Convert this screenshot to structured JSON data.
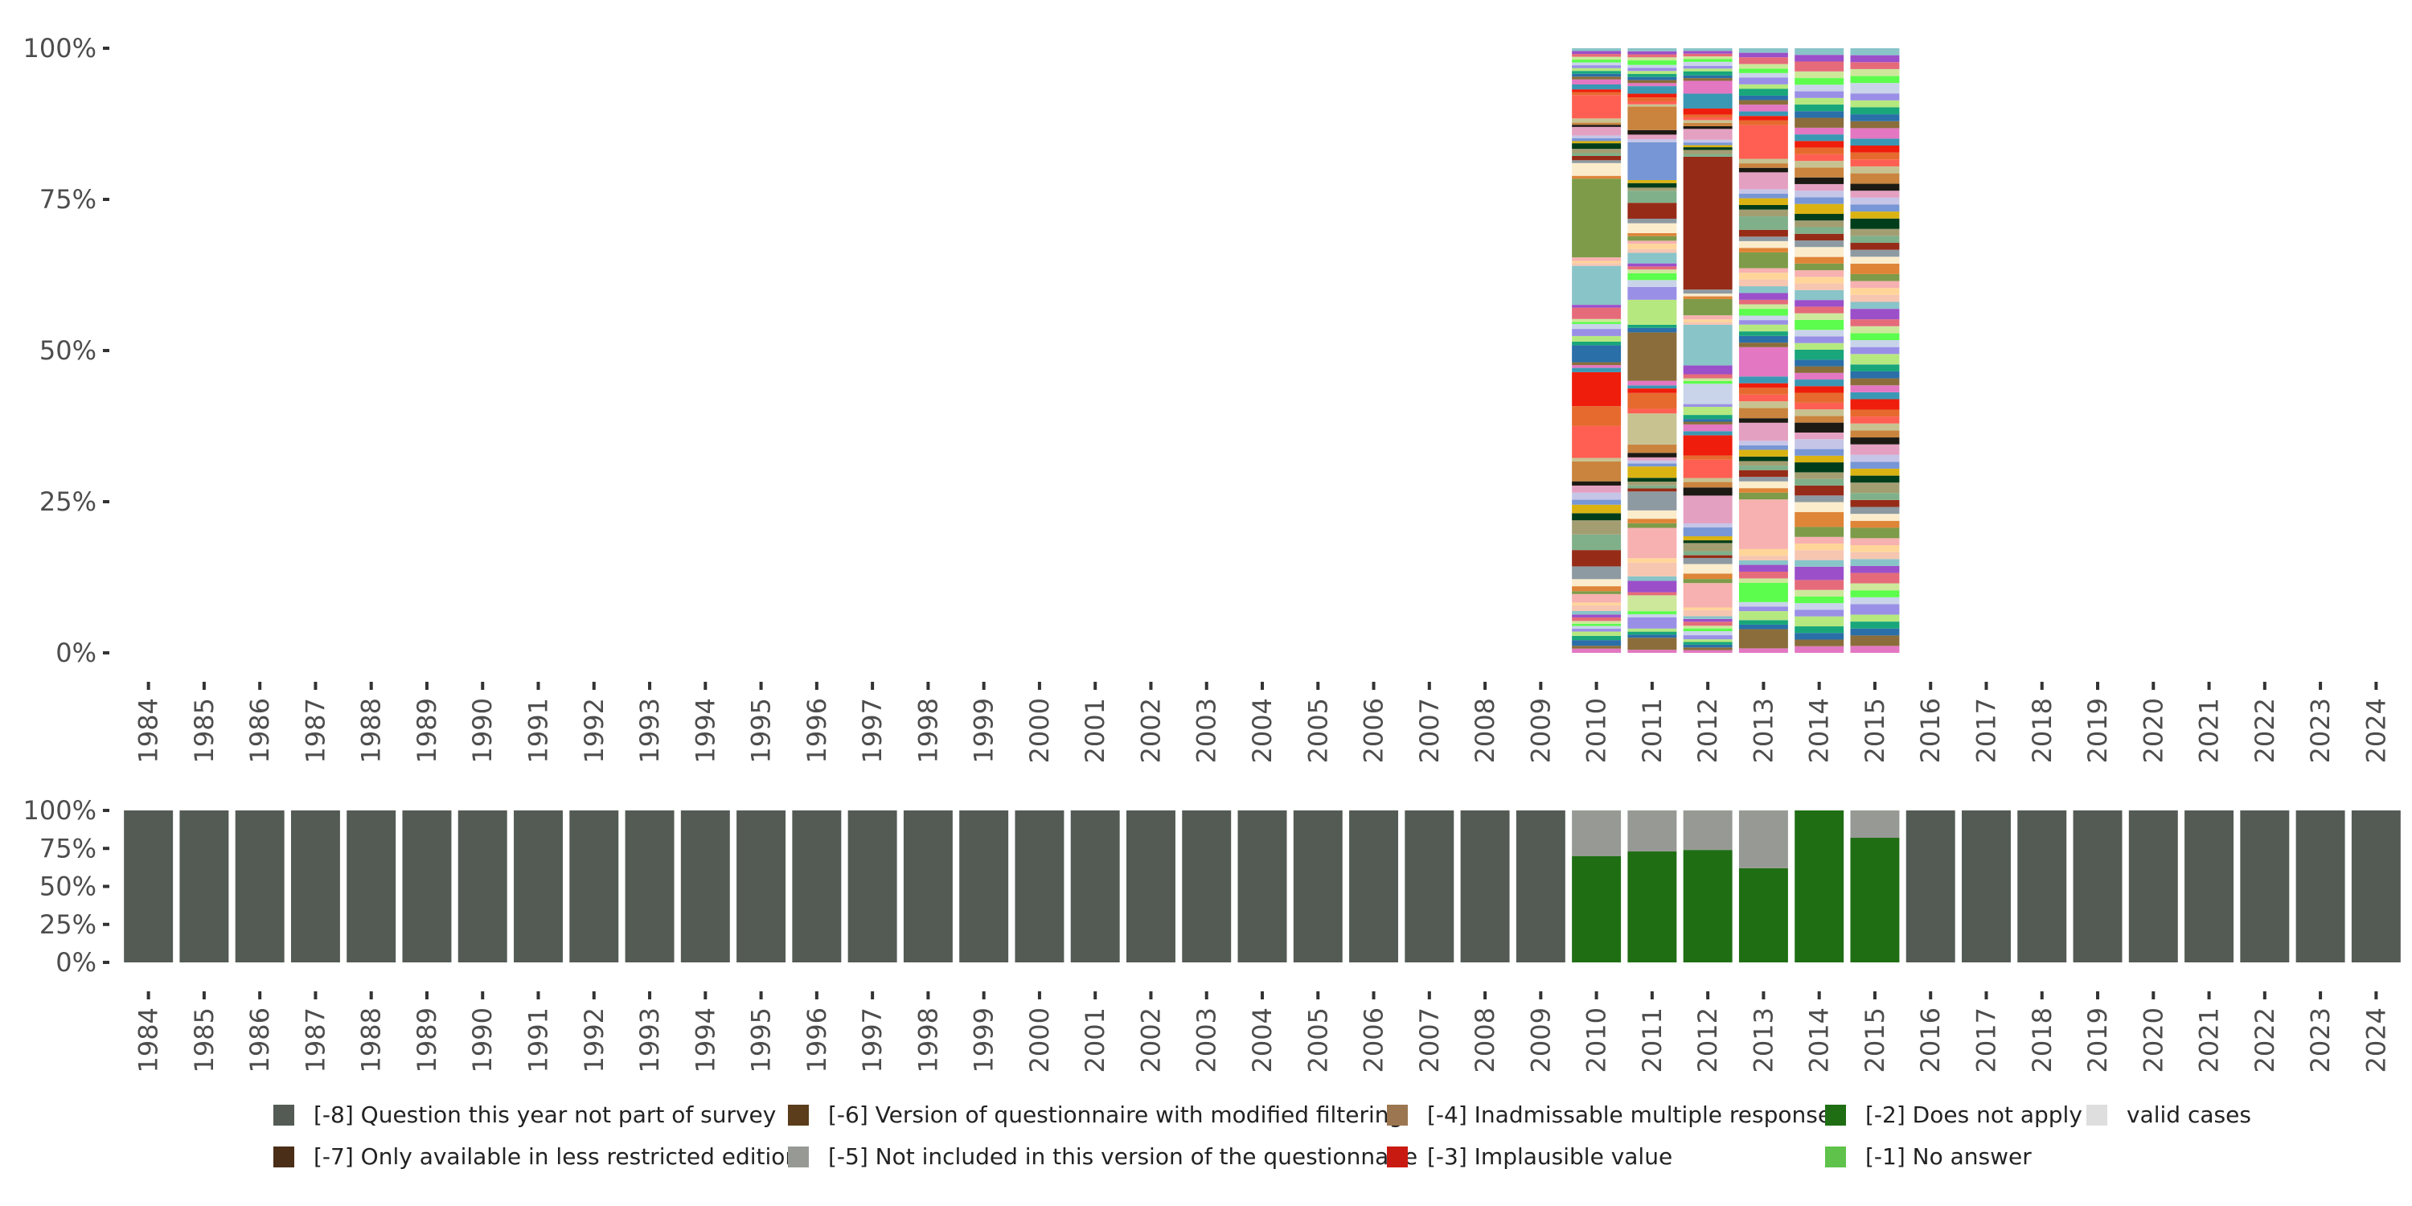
{
  "chart_data": [
    {
      "type": "bar",
      "stacked": true,
      "name": "valid-cases-distribution",
      "title": "",
      "xlabel": "",
      "ylabel": "",
      "ylim": [
        0,
        1
      ],
      "yticks": [
        "0%",
        "25%",
        "50%",
        "75%",
        "100%"
      ],
      "categories": [
        "1984",
        "1985",
        "1986",
        "1987",
        "1988",
        "1989",
        "1990",
        "1991",
        "1992",
        "1993",
        "1994",
        "1995",
        "1996",
        "1997",
        "1998",
        "1999",
        "2000",
        "2001",
        "2002",
        "2003",
        "2004",
        "2005",
        "2006",
        "2007",
        "2008",
        "2009",
        "2010",
        "2011",
        "2012",
        "2013",
        "2014",
        "2015",
        "2016",
        "2017",
        "2018",
        "2019",
        "2020",
        "2021",
        "2022",
        "2023",
        "2024"
      ],
      "palette": [
        "#e377c2",
        "#8b6d3b",
        "#2a6fa8",
        "#18a67a",
        "#b6e880",
        "#9a8fe6",
        "#c9d4ea",
        "#5cfd4c",
        "#cde89a",
        "#e56b7a",
        "#9b4fc9",
        "#89c4c9",
        "#f6c6b1",
        "#ffd59a",
        "#f7b1b0",
        "#7d9b49",
        "#de8538",
        "#fbeccc",
        "#8e9aa1",
        "#962c18",
        "#7fb08a",
        "#a39e72",
        "#003d1a",
        "#dab312",
        "#7796d5",
        "#c5c5e8",
        "#e4a0c1",
        "#1d1a14",
        "#ca843e",
        "#c8c291",
        "#ff5f52",
        "#e66a2e",
        "#ef1d0c",
        "#3b98b4"
      ],
      "bar_years": [
        "2010",
        "2011",
        "2012",
        "2013",
        "2014",
        "2015"
      ],
      "stacks": [
        [
          0.006,
          0.004,
          0.008,
          0.006,
          0.006,
          0.004,
          0.004,
          0.003,
          0.004,
          0.005,
          0.004,
          0.005,
          0.008,
          0.004,
          0.012,
          0.004,
          0.007,
          0.01,
          0.018,
          0.023,
          0.022,
          0.02,
          0.01,
          0.012,
          0.007,
          0.01,
          0.01,
          0.006,
          0.028,
          0.005,
          0.045,
          0.028,
          0.048,
          0.006,
          0.004,
          0.004,
          0.024,
          0.005,
          0.008,
          0.01,
          0.007,
          0.003,
          0.004,
          0.016,
          0.004,
          0.055,
          0.004,
          0.003,
          0.005,
          0.111,
          0.004,
          0.018,
          0.004,
          0.006,
          0.004,
          0.006,
          0.008,
          0.003,
          0.004,
          0.004,
          0.012,
          0.003,
          0.003,
          0.006,
          0.033,
          0.004,
          0.004,
          0.007,
          0.007,
          0.004,
          0.004,
          0.004,
          0.004,
          0.004,
          0.004,
          0.004,
          0.004,
          0.004,
          0.004,
          0.004
        ],
        [
          0.004,
          0.016,
          0.004,
          0.004,
          0.004,
          0.015,
          0.004,
          0.004,
          0.021,
          0.004,
          0.015,
          0.006,
          0.018,
          0.006,
          0.04,
          0.006,
          0.006,
          0.011,
          0.025,
          0.004,
          0.004,
          0.005,
          0.005,
          0.015,
          0.004,
          0.004,
          0.004,
          0.006,
          0.011,
          0.041,
          0.006,
          0.021,
          0.006,
          0.004,
          0.006,
          0.064,
          0.006,
          0.004,
          0.033,
          0.017,
          0.009,
          0.009,
          0.005,
          0.004,
          0.004,
          0.014,
          0.005,
          0.007,
          0.004,
          0.006,
          0.004,
          0.013,
          0.006,
          0.021,
          0.016,
          0.004,
          0.006,
          0.004,
          0.05,
          0.004,
          0.006,
          0.006,
          0.031,
          0.003,
          0.004,
          0.005,
          0.005,
          0.01,
          0.004,
          0.004,
          0.004,
          0.004,
          0.004,
          0.004,
          0.004,
          0.006,
          0.004,
          0.004,
          0.004,
          0.004
        ],
        [
          0.004,
          0.004,
          0.004,
          0.004,
          0.004,
          0.006,
          0.006,
          0.004,
          0.004,
          0.006,
          0.004,
          0.004,
          0.009,
          0.004,
          0.036,
          0.006,
          0.008,
          0.014,
          0.009,
          0.004,
          0.006,
          0.012,
          0.004,
          0.006,
          0.013,
          0.006,
          0.041,
          0.012,
          0.008,
          0.006,
          0.027,
          0.006,
          0.03,
          0.006,
          0.01,
          0.004,
          0.004,
          0.006,
          0.012,
          0.004,
          0.03,
          0.004,
          0.004,
          0.006,
          0.013,
          0.06,
          0.004,
          0.004,
          0.006,
          0.024,
          0.004,
          0.004,
          0.006,
          0.196,
          0.004,
          0.006,
          0.004,
          0.003,
          0.004,
          0.004,
          0.016,
          0.004,
          0.005,
          0.004,
          0.004,
          0.004,
          0.009,
          0.022,
          0.019,
          0.004,
          0.004,
          0.006,
          0.004,
          0.004,
          0.006,
          0.004,
          0.004,
          0.004,
          0.004,
          0.004
        ],
        [
          0.004,
          0.017,
          0.004,
          0.004,
          0.008,
          0.004,
          0.004,
          0.017,
          0.004,
          0.006,
          0.006,
          0.004,
          0.004,
          0.006,
          0.044,
          0.006,
          0.004,
          0.006,
          0.004,
          0.006,
          0.004,
          0.004,
          0.004,
          0.006,
          0.004,
          0.004,
          0.016,
          0.004,
          0.009,
          0.006,
          0.006,
          0.006,
          0.004,
          0.006,
          0.026,
          0.004,
          0.006,
          0.004,
          0.006,
          0.004,
          0.004,
          0.006,
          0.004,
          0.004,
          0.006,
          0.006,
          0.006,
          0.006,
          0.004,
          0.014,
          0.004,
          0.006,
          0.004,
          0.006,
          0.012,
          0.006,
          0.004,
          0.006,
          0.004,
          0.004,
          0.015,
          0.004,
          0.004,
          0.004,
          0.03,
          0.004,
          0.004,
          0.004,
          0.006,
          0.004,
          0.004,
          0.006,
          0.004,
          0.006,
          0.004,
          0.004,
          0.004,
          0.006,
          0.004,
          0.004
        ],
        [
          0.004,
          0.004,
          0.004,
          0.004,
          0.006,
          0.004,
          0.004,
          0.004,
          0.004,
          0.006,
          0.008,
          0.004,
          0.006,
          0.004,
          0.004,
          0.006,
          0.009,
          0.006,
          0.004,
          0.006,
          0.004,
          0.004,
          0.006,
          0.004,
          0.004,
          0.006,
          0.004,
          0.006,
          0.004,
          0.004,
          0.004,
          0.006,
          0.004,
          0.004,
          0.004,
          0.004,
          0.004,
          0.006,
          0.004,
          0.004,
          0.004,
          0.006,
          0.004,
          0.004,
          0.004,
          0.006,
          0.004,
          0.004,
          0.004,
          0.004,
          0.004,
          0.006,
          0.004,
          0.004,
          0.004,
          0.004,
          0.004,
          0.006,
          0.004,
          0.004,
          0.004,
          0.004,
          0.006,
          0.004,
          0.004,
          0.004,
          0.004,
          0.004,
          0.004,
          0.006,
          0.004,
          0.004,
          0.004,
          0.004,
          0.004,
          0.004,
          0.004,
          0.006,
          0.004,
          0.004
        ],
        [
          0.004,
          0.006,
          0.004,
          0.004,
          0.004,
          0.006,
          0.004,
          0.004,
          0.004,
          0.006,
          0.004,
          0.004,
          0.004,
          0.004,
          0.004,
          0.006,
          0.004,
          0.004,
          0.004,
          0.004,
          0.004,
          0.006,
          0.004,
          0.004,
          0.004,
          0.004,
          0.006,
          0.004,
          0.004,
          0.004,
          0.004,
          0.004,
          0.006,
          0.004,
          0.004,
          0.004,
          0.004,
          0.004,
          0.006,
          0.004,
          0.004,
          0.004,
          0.004,
          0.004,
          0.006,
          0.004,
          0.004,
          0.004,
          0.004,
          0.004,
          0.006,
          0.004,
          0.004,
          0.004,
          0.004,
          0.004,
          0.006,
          0.004,
          0.004,
          0.004,
          0.004,
          0.004,
          0.006,
          0.004,
          0.004,
          0.004,
          0.004,
          0.004,
          0.006,
          0.004,
          0.004,
          0.004,
          0.004,
          0.004,
          0.006,
          0.004,
          0.004,
          0.004,
          0.004,
          0.004
        ]
      ]
    },
    {
      "type": "bar",
      "stacked": true,
      "name": "missing-codes-share",
      "title": "",
      "xlabel": "",
      "ylabel": "",
      "ylim": [
        0,
        1
      ],
      "yticks": [
        "0%",
        "25%",
        "50%",
        "75%",
        "100%"
      ],
      "categories": [
        "1984",
        "1985",
        "1986",
        "1987",
        "1988",
        "1989",
        "1990",
        "1991",
        "1992",
        "1993",
        "1994",
        "1995",
        "1996",
        "1997",
        "1998",
        "1999",
        "2000",
        "2001",
        "2002",
        "2003",
        "2004",
        "2005",
        "2006",
        "2007",
        "2008",
        "2009",
        "2010",
        "2011",
        "2012",
        "2013",
        "2014",
        "2015",
        "2016",
        "2017",
        "2018",
        "2019",
        "2020",
        "2021",
        "2022",
        "2023",
        "2024"
      ],
      "series": [
        {
          "name": "[-8] Question this year not part of survey",
          "color": "#545b55",
          "values": [
            1,
            1,
            1,
            1,
            1,
            1,
            1,
            1,
            1,
            1,
            1,
            1,
            1,
            1,
            1,
            1,
            1,
            1,
            1,
            1,
            1,
            1,
            1,
            1,
            1,
            1,
            0,
            0,
            0,
            0,
            0,
            0,
            1,
            1,
            1,
            1,
            1,
            1,
            1,
            1,
            1
          ]
        },
        {
          "name": "[-2] Does not apply",
          "color": "#1f6e14",
          "values": [
            0,
            0,
            0,
            0,
            0,
            0,
            0,
            0,
            0,
            0,
            0,
            0,
            0,
            0,
            0,
            0,
            0,
            0,
            0,
            0,
            0,
            0,
            0,
            0,
            0,
            0,
            0.7,
            0.73,
            0.74,
            0.62,
            1,
            0.82,
            0,
            0,
            0,
            0,
            0,
            0,
            0,
            0,
            0
          ]
        },
        {
          "name": "[-5] Not included in this version of the questionnaire",
          "color": "#979a94",
          "values": [
            0,
            0,
            0,
            0,
            0,
            0,
            0,
            0,
            0,
            0,
            0,
            0,
            0,
            0,
            0,
            0,
            0,
            0,
            0,
            0,
            0,
            0,
            0,
            0,
            0,
            0,
            0.3,
            0.27,
            0.26,
            0.38,
            0,
            0.18,
            0,
            0,
            0,
            0,
            0,
            0,
            0,
            0,
            0
          ]
        }
      ]
    }
  ],
  "legend": {
    "rows": [
      [
        {
          "label": "[-8] Question this year not part of survey",
          "color": "#545b55"
        },
        {
          "label": "[-6] Version of questionnaire with modified filtering",
          "color": "#5b3c1b"
        },
        {
          "label": "[-4] Inadmissable multiple response",
          "color": "#9b7650"
        },
        {
          "label": "[-2] Does not apply",
          "color": "#1f6e14"
        },
        {
          "label": "valid cases",
          "color": "#dedede"
        }
      ],
      [
        {
          "label": "[-7] Only available in less restricted edition",
          "color": "#4a2e18"
        },
        {
          "label": "[-5] Not included in this version of the questionnaire",
          "color": "#979a94"
        },
        {
          "label": "[-3] Implausible value",
          "color": "#c91a12"
        },
        {
          "label": "[-1] No answer",
          "color": "#5fc24b"
        }
      ]
    ]
  }
}
